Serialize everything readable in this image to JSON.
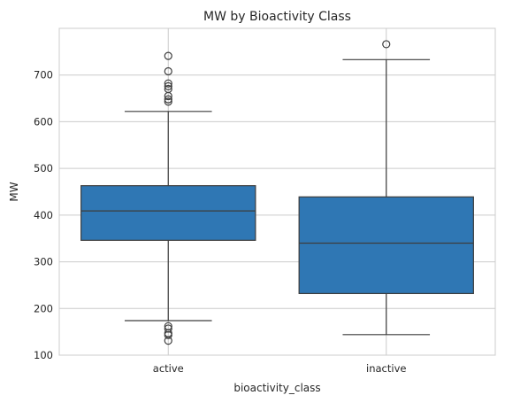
{
  "chart_data": {
    "type": "box",
    "title": "MW by Bioactivity Class",
    "xlabel": "bioactivity_class",
    "ylabel": "MW",
    "ylim": [
      100,
      800
    ],
    "yticks": [
      100,
      200,
      300,
      400,
      500,
      600,
      700
    ],
    "grid": true,
    "categories": [
      "active",
      "inactive"
    ],
    "box_color": "#2f77b4",
    "boxes": [
      {
        "category": "active",
        "whisker_low": 174,
        "q1": 346,
        "median": 409,
        "q3": 463,
        "whisker_high": 622,
        "outliers": [
          741,
          708,
          682,
          676,
          670,
          655,
          648,
          643,
          162,
          157,
          147,
          143,
          131
        ]
      },
      {
        "category": "inactive",
        "whisker_low": 144,
        "q1": 232,
        "median": 340,
        "q3": 439,
        "whisker_high": 733,
        "outliers": [
          766
        ]
      }
    ]
  }
}
